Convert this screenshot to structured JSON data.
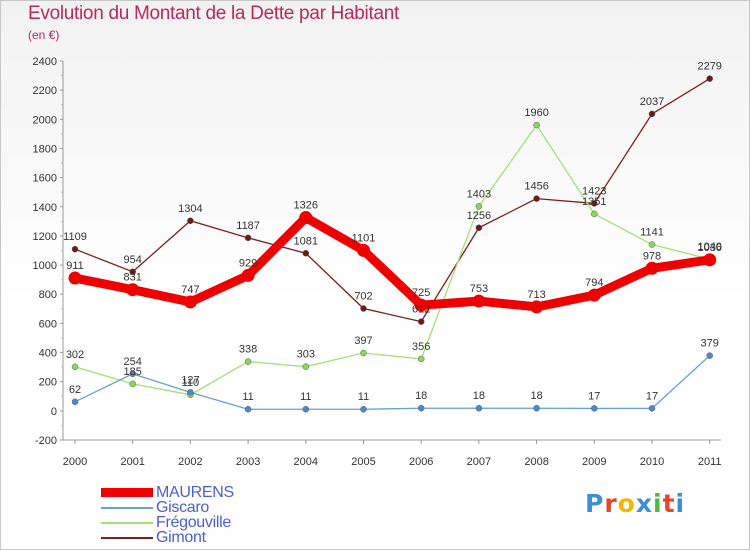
{
  "title": "Evolution du Montant de la Dette par Habitant",
  "subtitle": "(en €)",
  "logo_text": "Proxiti",
  "chart_data": {
    "type": "line",
    "title": "Evolution du Montant de la Dette par Habitant",
    "ylabel": "(en €)",
    "xlabel": "",
    "x": [
      "2000",
      "2001",
      "2002",
      "2003",
      "2004",
      "2005",
      "2006",
      "2007",
      "2008",
      "2009",
      "2010",
      "2011"
    ],
    "ylim": [
      -200,
      2400
    ],
    "yticks": [
      -200,
      0,
      200,
      400,
      600,
      800,
      1000,
      1200,
      1400,
      1600,
      1800,
      2000,
      2200,
      2400
    ],
    "grid": false,
    "legend_position": "bottom-left",
    "series": [
      {
        "name": "Gimont",
        "color": "#7a1f1f",
        "marker": "#6b1a1a",
        "values": [
          1109,
          954,
          1304,
          1187,
          1081,
          702,
          612,
          1256,
          1456,
          1423,
          2037,
          2279
        ]
      },
      {
        "name": "Frégouville",
        "color": "#a3e07a",
        "marker": "#8fd35f",
        "values": [
          302,
          185,
          110,
          338,
          303,
          397,
          356,
          1403,
          1960,
          1351,
          1141,
          1040
        ]
      },
      {
        "name": "Giscaro",
        "color": "#6b9fce",
        "marker": "#4c8ac7",
        "values": [
          62,
          254,
          127,
          11,
          11,
          11,
          18,
          18,
          18,
          17,
          17,
          379
        ]
      },
      {
        "name": "MAURENS",
        "color": "#ee0000",
        "marker": "#ee0000",
        "values": [
          911,
          831,
          747,
          929,
          1326,
          1101,
          725,
          753,
          713,
          794,
          978,
          1036
        ]
      }
    ],
    "legend": [
      {
        "name": "MAURENS",
        "color": "#ee0000",
        "label_color": "#4a5fd6",
        "width": 9
      },
      {
        "name": "Giscaro",
        "color": "#6b9fce",
        "label_color": "#4a5fd6",
        "width": 2
      },
      {
        "name": "Frégouville",
        "color": "#a3e07a",
        "label_color": "#4a5fd6",
        "width": 2
      },
      {
        "name": "Gimont",
        "color": "#7a1f1f",
        "label_color": "#4a5fd6",
        "width": 2
      }
    ]
  }
}
